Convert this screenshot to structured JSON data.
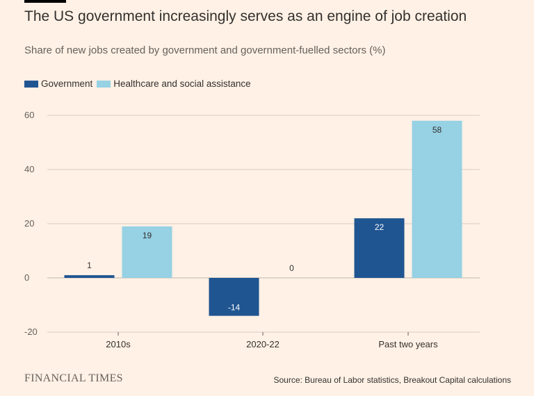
{
  "title": "The US government increasingly serves as an engine of job creation",
  "subtitle": "Share of new jobs created by government and government-fuelled sectors (%)",
  "brand": "FINANCIAL TIMES",
  "source": "Source: Bureau of Labor statistics, Breakout Capital calculations",
  "colors": {
    "government": "#1F5591",
    "healthcare": "#96D1E4",
    "background": "#FFF1E5",
    "grid": "#D9CCC1"
  },
  "chart_data": {
    "type": "bar",
    "categories": [
      "2010s",
      "2020-22",
      "Past two years"
    ],
    "series": [
      {
        "name": "Government",
        "values": [
          1,
          -14,
          22
        ],
        "color": "#1F5591"
      },
      {
        "name": "Healthcare and social assistance",
        "values": [
          19,
          0,
          58
        ],
        "color": "#96D1E4"
      }
    ],
    "yticks": [
      60,
      40,
      20,
      0,
      -20
    ],
    "ylim": [
      -20,
      60
    ],
    "grid": true,
    "legend_position": "top-left"
  }
}
